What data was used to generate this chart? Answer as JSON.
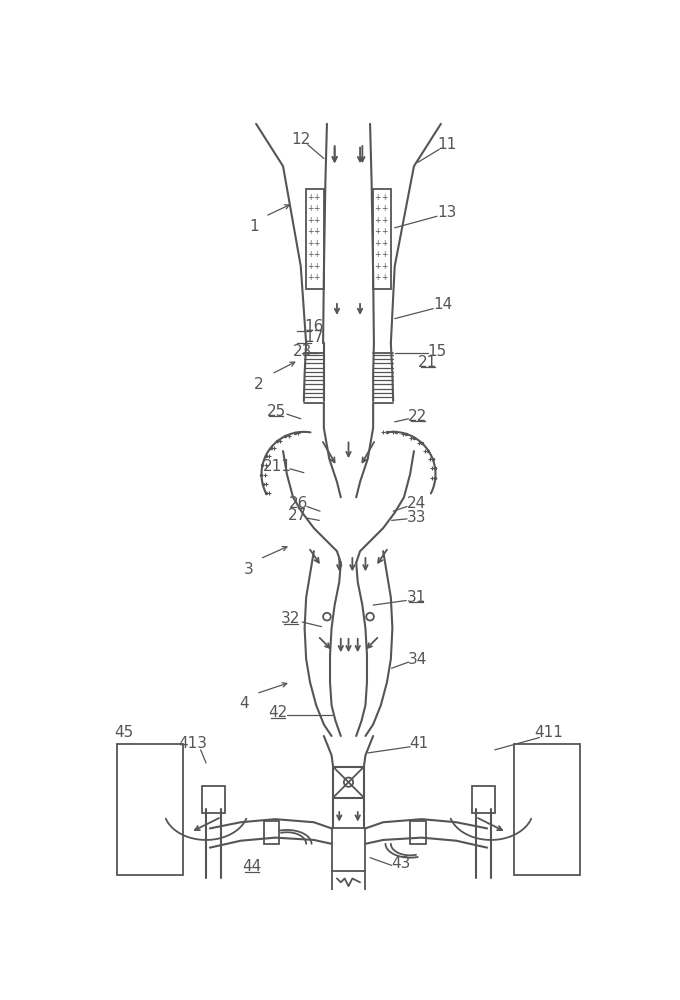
{
  "bg_color": "#ffffff",
  "line_color": "#555555",
  "lw": 1.3,
  "lw2": 1.5,
  "fs": 11
}
